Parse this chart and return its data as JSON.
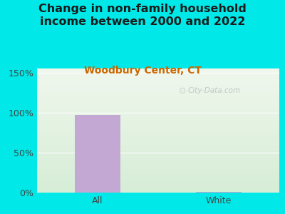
{
  "title": "Change in non-family household\nincome between 2000 and 2022",
  "subtitle": "Woodbury Center, CT",
  "categories": [
    "All",
    "White"
  ],
  "values": [
    97.0,
    0.5
  ],
  "bar_color": "#c4a8d4",
  "title_fontsize": 11.5,
  "subtitle_fontsize": 10,
  "subtitle_color": "#cc6600",
  "title_color": "#1a1a1a",
  "ylabel_ticks": [
    "0%",
    "50%",
    "100%",
    "150%"
  ],
  "ytick_vals": [
    0,
    50,
    100,
    150
  ],
  "ylim": [
    0,
    155
  ],
  "bg_outer": "#00e8e8",
  "bg_inner_top_left": "#f0f5ee",
  "bg_inner_bottom_right": "#ddeedd",
  "watermark": "City-Data.com",
  "bar_width": 0.38
}
